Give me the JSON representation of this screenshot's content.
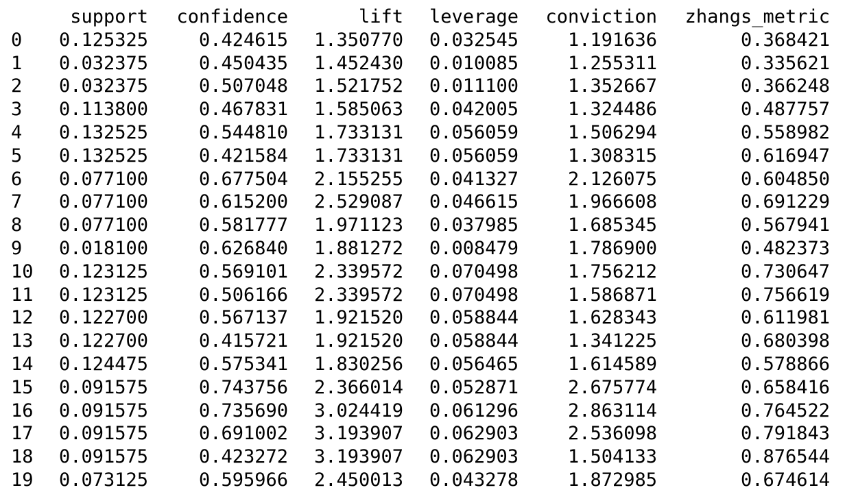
{
  "table": {
    "columns": [
      "",
      "support",
      "confidence",
      "lift",
      "leverage",
      "conviction",
      "zhangs_metric"
    ],
    "rows": [
      [
        "0",
        "0.125325",
        "0.424615",
        "1.350770",
        "0.032545",
        "1.191636",
        "0.368421"
      ],
      [
        "1",
        "0.032375",
        "0.450435",
        "1.452430",
        "0.010085",
        "1.255311",
        "0.335621"
      ],
      [
        "2",
        "0.032375",
        "0.507048",
        "1.521752",
        "0.011100",
        "1.352667",
        "0.366248"
      ],
      [
        "3",
        "0.113800",
        "0.467831",
        "1.585063",
        "0.042005",
        "1.324486",
        "0.487757"
      ],
      [
        "4",
        "0.132525",
        "0.544810",
        "1.733131",
        "0.056059",
        "1.506294",
        "0.558982"
      ],
      [
        "5",
        "0.132525",
        "0.421584",
        "1.733131",
        "0.056059",
        "1.308315",
        "0.616947"
      ],
      [
        "6",
        "0.077100",
        "0.677504",
        "2.155255",
        "0.041327",
        "2.126075",
        "0.604850"
      ],
      [
        "7",
        "0.077100",
        "0.615200",
        "2.529087",
        "0.046615",
        "1.966608",
        "0.691229"
      ],
      [
        "8",
        "0.077100",
        "0.581777",
        "1.971123",
        "0.037985",
        "1.685345",
        "0.567941"
      ],
      [
        "9",
        "0.018100",
        "0.626840",
        "1.881272",
        "0.008479",
        "1.786900",
        "0.482373"
      ],
      [
        "10",
        "0.123125",
        "0.569101",
        "2.339572",
        "0.070498",
        "1.756212",
        "0.730647"
      ],
      [
        "11",
        "0.123125",
        "0.506166",
        "2.339572",
        "0.070498",
        "1.586871",
        "0.756619"
      ],
      [
        "12",
        "0.122700",
        "0.567137",
        "1.921520",
        "0.058844",
        "1.628343",
        "0.611981"
      ],
      [
        "13",
        "0.122700",
        "0.415721",
        "1.921520",
        "0.058844",
        "1.341225",
        "0.680398"
      ],
      [
        "14",
        "0.124475",
        "0.575341",
        "1.830256",
        "0.056465",
        "1.614589",
        "0.578866"
      ],
      [
        "15",
        "0.091575",
        "0.743756",
        "2.366014",
        "0.052871",
        "2.675774",
        "0.658416"
      ],
      [
        "16",
        "0.091575",
        "0.735690",
        "3.024419",
        "0.061296",
        "2.863114",
        "0.764522"
      ],
      [
        "17",
        "0.091575",
        "0.691002",
        "3.193907",
        "0.062903",
        "2.536098",
        "0.791843"
      ],
      [
        "18",
        "0.091575",
        "0.423272",
        "3.193907",
        "0.062903",
        "1.504133",
        "0.876544"
      ],
      [
        "19",
        "0.073125",
        "0.595966",
        "2.450013",
        "0.043278",
        "1.872985",
        "0.674614"
      ]
    ]
  }
}
